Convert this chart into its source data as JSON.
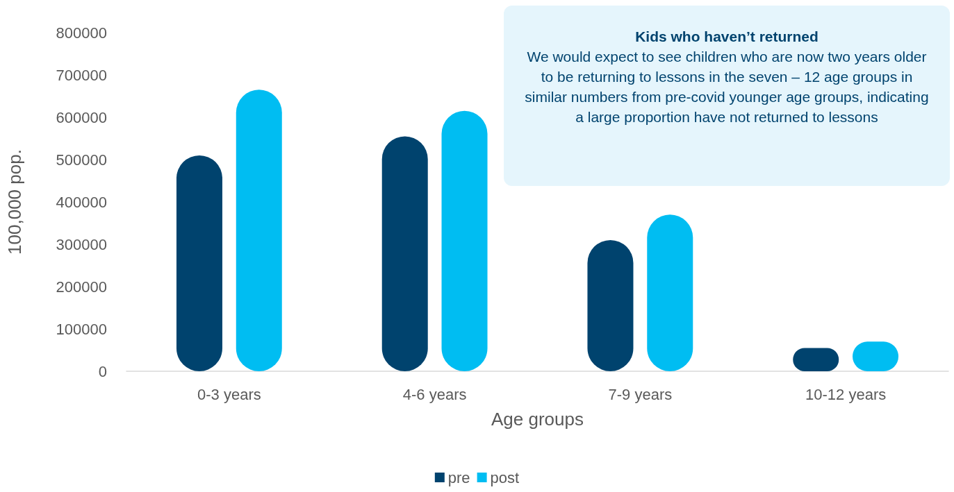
{
  "chart_data": {
    "type": "bar",
    "xlabel": "Age groups",
    "ylabel": "100,000 pop.",
    "categories": [
      "0-3 years",
      "4-6 years",
      "7-9 years",
      "10-12 years"
    ],
    "series": [
      {
        "name": "pre",
        "color": "#00436e",
        "values": [
          510000,
          555000,
          310000,
          55000
        ]
      },
      {
        "name": "post",
        "color": "#00bdf2",
        "values": [
          665000,
          615000,
          370000,
          70000
        ]
      }
    ],
    "ylim": [
      0,
      800000
    ],
    "yticks": [
      0,
      100000,
      200000,
      300000,
      400000,
      500000,
      600000,
      700000,
      800000
    ],
    "grid": false,
    "legend": "bottom",
    "annotations": [
      "Kids who haven’t returned",
      "We would expect to see children who are now two years older to be returning to lessons in the seven – 12 age groups in similar numbers from pre-covid younger age groups, indicating a large proportion have not returned to lessons"
    ]
  }
}
